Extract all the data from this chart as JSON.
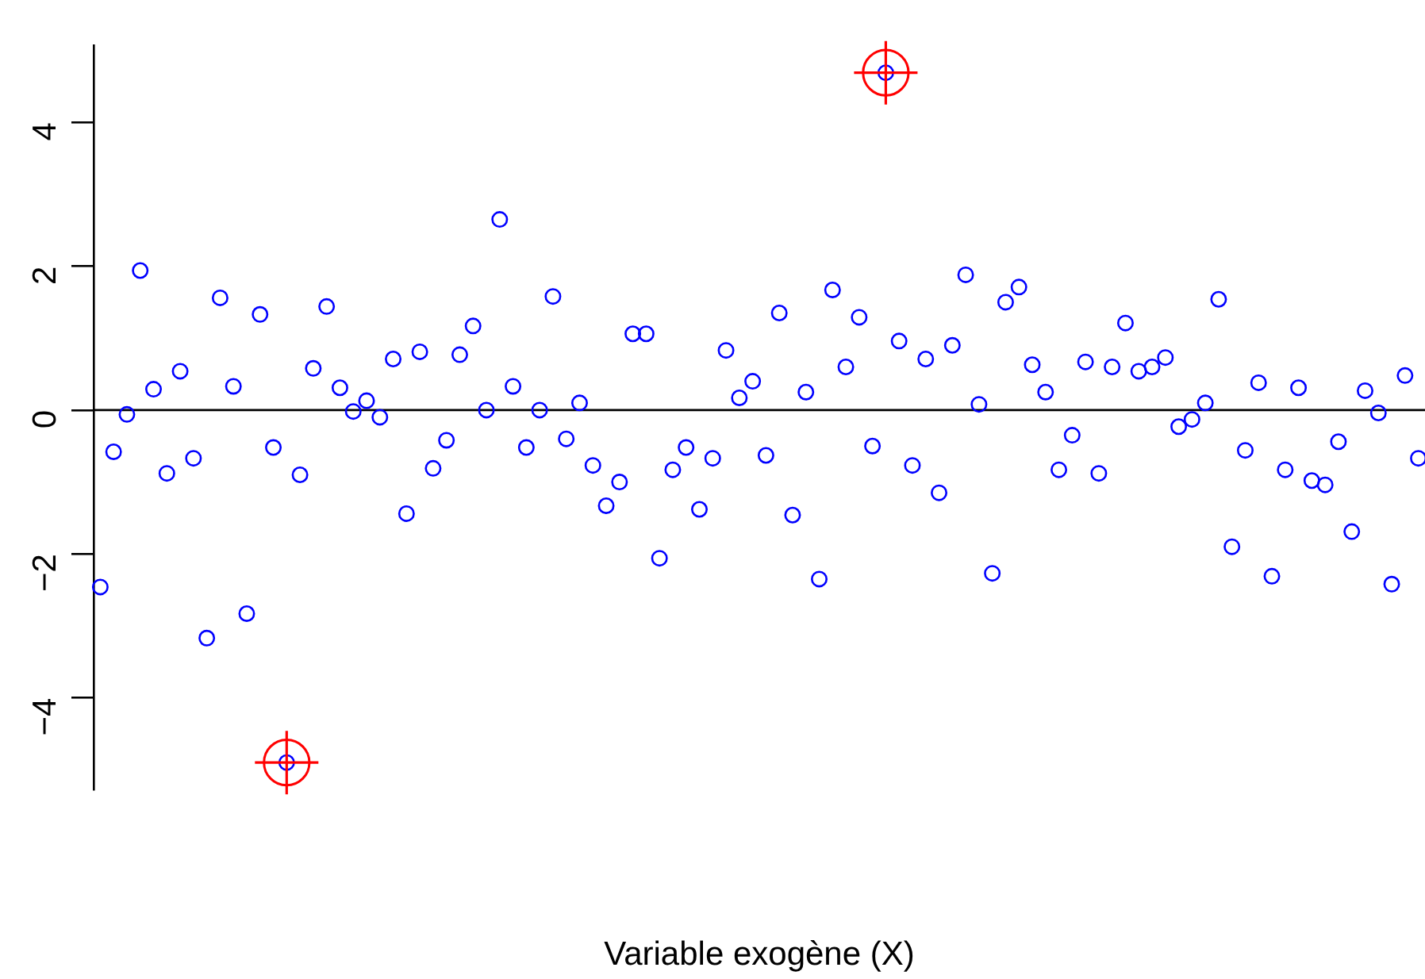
{
  "chart_data": {
    "type": "scatter",
    "xlabel": "Variable exogène (X)",
    "categories": [
      null,
      null,
      null,
      null,
      null,
      null,
      null,
      null,
      null,
      null,
      null,
      null,
      null,
      null,
      null,
      null,
      null,
      null,
      null,
      null,
      null,
      null,
      null,
      null,
      null,
      null,
      null,
      null,
      null,
      null,
      null,
      null,
      null,
      null,
      null,
      null,
      null,
      null,
      null,
      null,
      null,
      null,
      null,
      null,
      null,
      null,
      null,
      null,
      null,
      null,
      null,
      null,
      null,
      null,
      null,
      null,
      null,
      null,
      null,
      null,
      null,
      null,
      null,
      null,
      null,
      null,
      null,
      null,
      null,
      null,
      null,
      null,
      null,
      null,
      null,
      null,
      null,
      null,
      null,
      null,
      null,
      null,
      null,
      null,
      null,
      null,
      null,
      null,
      null,
      null,
      null,
      null,
      null,
      null,
      null,
      null,
      null,
      null,
      null,
      null
    ],
    "series": [
      {
        "color": "#0000ff",
        "marker": "circle",
        "values": [
          -2.46,
          -0.58,
          -0.06,
          1.94,
          0.29,
          -0.88,
          0.54,
          -0.67,
          -3.17,
          1.56,
          0.33,
          -2.83,
          1.33,
          -0.52,
          -4.9,
          -0.9,
          0.58,
          1.44,
          0.31,
          -0.02,
          0.13,
          -0.1,
          0.71,
          -1.44,
          0.81,
          -0.81,
          -0.42,
          0.77,
          1.17,
          0.0,
          2.65,
          0.33,
          -0.52,
          0.0,
          1.58,
          -0.4,
          0.1,
          -0.77,
          -1.33,
          -1.0,
          1.06,
          1.06,
          -2.06,
          -0.83,
          -0.52,
          -1.38,
          -0.67,
          0.83,
          0.17,
          0.4,
          -0.63,
          1.35,
          -1.46,
          0.25,
          -2.35,
          1.67,
          0.6,
          1.29,
          -0.5,
          4.69,
          0.96,
          -0.77,
          0.71,
          -1.15,
          0.9,
          1.88,
          0.08,
          -2.27,
          1.5,
          1.71,
          0.63,
          0.25,
          -0.83,
          -0.35,
          0.67,
          -0.88,
          0.6,
          1.21,
          0.54,
          0.6,
          0.73,
          -0.23,
          -0.13,
          0.1,
          1.54,
          -1.9,
          -0.56,
          0.38,
          -2.31,
          -0.83,
          0.31,
          -0.98,
          -1.04,
          -0.44,
          -1.69,
          0.27,
          -0.04,
          -2.42,
          0.48,
          -0.67
        ]
      },
      {
        "color": "#ff0000",
        "marker": "cross",
        "values": [
          null,
          null,
          null,
          null,
          null,
          null,
          null,
          null,
          null,
          null,
          null,
          null,
          null,
          null,
          -4.9,
          null,
          null,
          null,
          null,
          null,
          null,
          null,
          null,
          null,
          null,
          null,
          null,
          null,
          null,
          null,
          null,
          null,
          null,
          null,
          null,
          null,
          null,
          null,
          null,
          null,
          null,
          null,
          null,
          null,
          null,
          null,
          null,
          null,
          null,
          null,
          null,
          null,
          null,
          null,
          null,
          null,
          null,
          null,
          null,
          4.69,
          null,
          null,
          null,
          null,
          null,
          null,
          null,
          null,
          null,
          null,
          null,
          null,
          null,
          null,
          null,
          null,
          null,
          null,
          null,
          null,
          null,
          null,
          null,
          null,
          null,
          null,
          null,
          null,
          null,
          null,
          null,
          null,
          null,
          null,
          null,
          null,
          null,
          null,
          null,
          null
        ]
      },
      {
        "color": "#ff0000",
        "marker": "circle",
        "values": [
          null,
          null,
          null,
          null,
          null,
          null,
          null,
          null,
          null,
          null,
          null,
          null,
          null,
          null,
          -4.9,
          null,
          null,
          null,
          null,
          null,
          null,
          null,
          null,
          null,
          null,
          null,
          null,
          null,
          null,
          null,
          null,
          null,
          null,
          null,
          null,
          null,
          null,
          null,
          null,
          null,
          null,
          null,
          null,
          null,
          null,
          null,
          null,
          null,
          null,
          null,
          null,
          null,
          null,
          null,
          null,
          null,
          null,
          null,
          null,
          4.69,
          null,
          null,
          null,
          null,
          null,
          null,
          null,
          null,
          null,
          null,
          null,
          null,
          null,
          null,
          null,
          null,
          null,
          null,
          null,
          null,
          null,
          null,
          null,
          null,
          null,
          null,
          null,
          null,
          null,
          null,
          null,
          null,
          null,
          null,
          null,
          null,
          null,
          null,
          null,
          null
        ]
      }
    ],
    "ylim": [
      -5.28,
      5.07
    ],
    "yticks": [
      {
        "value": -4,
        "label": "−4"
      },
      {
        "value": -2,
        "label": "−2"
      },
      0,
      2,
      4
    ],
    "ref_lines": [
      {
        "axis": "y",
        "value": 0,
        "color": "#000000"
      }
    ],
    "tick_labels": "y"
  }
}
